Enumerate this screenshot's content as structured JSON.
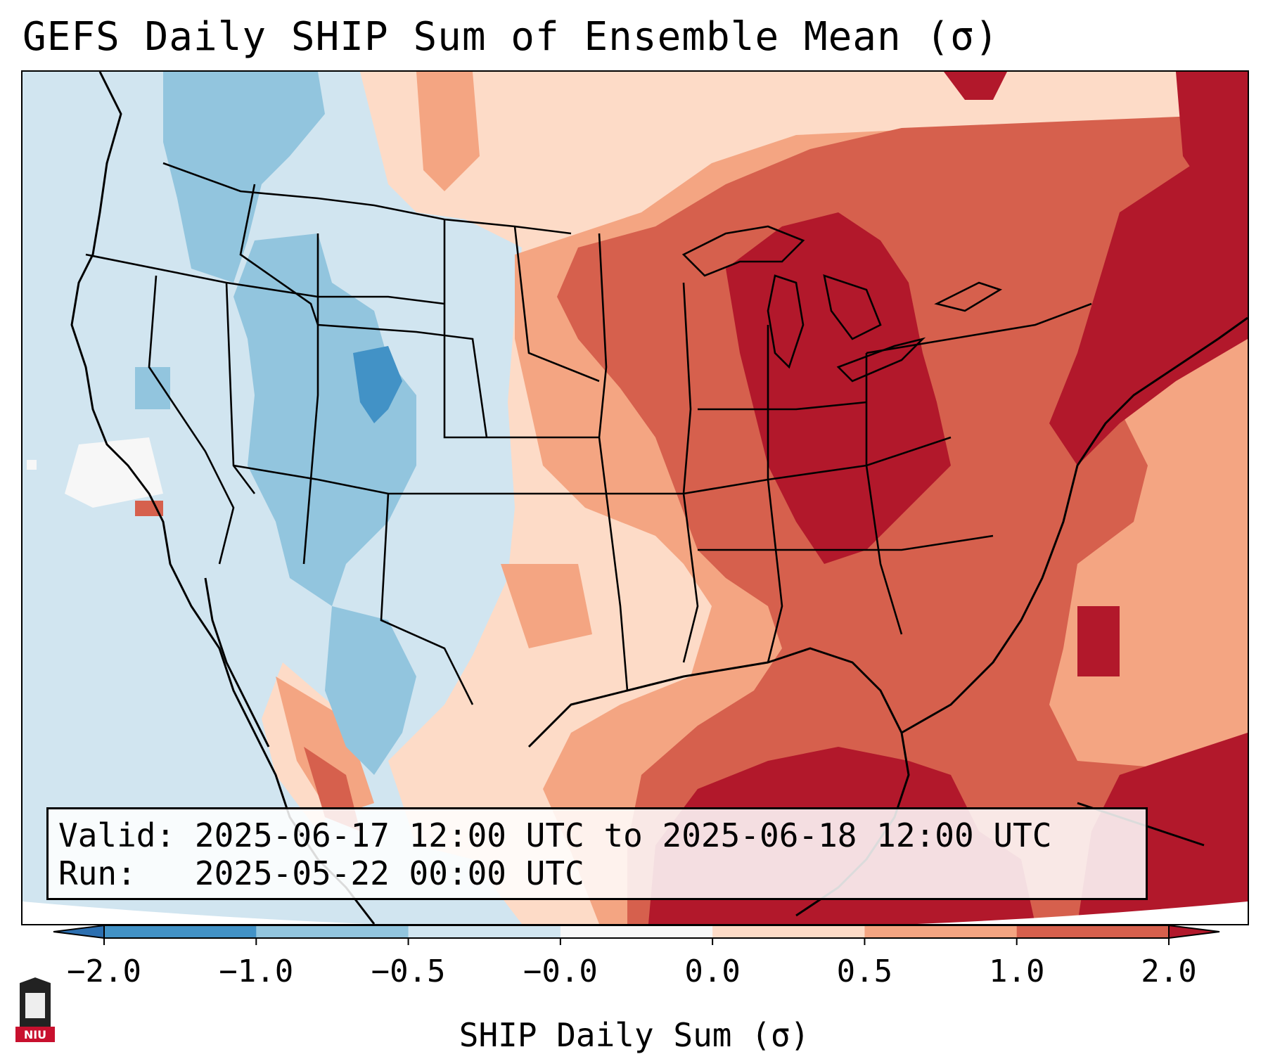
{
  "title": "GEFS Daily SHIP Sum of Ensemble Mean (σ)",
  "info": {
    "valid_label": "Valid:",
    "valid_value": "2025-06-17 12:00 UTC to 2025-06-18 12:00 UTC",
    "run_label": "Run:",
    "run_value": "2025-05-22 00:00 UTC"
  },
  "colorbar": {
    "title": "SHIP Daily Sum (σ)",
    "ticks": [
      "−2.0",
      "−1.0",
      "−0.5",
      "−0.0",
      "0.0",
      "0.5",
      "1.0",
      "2.0"
    ],
    "bins": [
      {
        "from": -2.0,
        "to": -1.0,
        "color": "#4292c6"
      },
      {
        "from": -1.0,
        "to": -0.5,
        "color": "#92c5de"
      },
      {
        "from": -0.5,
        "to": -0.0,
        "color": "#d1e5f0"
      },
      {
        "from": -0.0,
        "to": 0.0,
        "color": "#f7f7f7"
      },
      {
        "from": 0.0,
        "to": 0.5,
        "color": "#fddbc7"
      },
      {
        "from": 0.5,
        "to": 1.0,
        "color": "#f4a582"
      },
      {
        "from": 1.0,
        "to": 2.0,
        "color": "#d6604d"
      }
    ],
    "under_color": "#2c6fb0",
    "over_color": "#b2182b"
  },
  "logo": {
    "text": "NIU",
    "color": "#c8102e"
  },
  "colors": {
    "strong_negative": "#4292c6",
    "negative": "#92c5de",
    "weak_negative": "#d1e5f0",
    "near_zero": "#f7f7f7",
    "weak_positive": "#fddbc7",
    "positive": "#f4a582",
    "strong_positive": "#d6604d",
    "extreme_positive": "#b2182b"
  }
}
